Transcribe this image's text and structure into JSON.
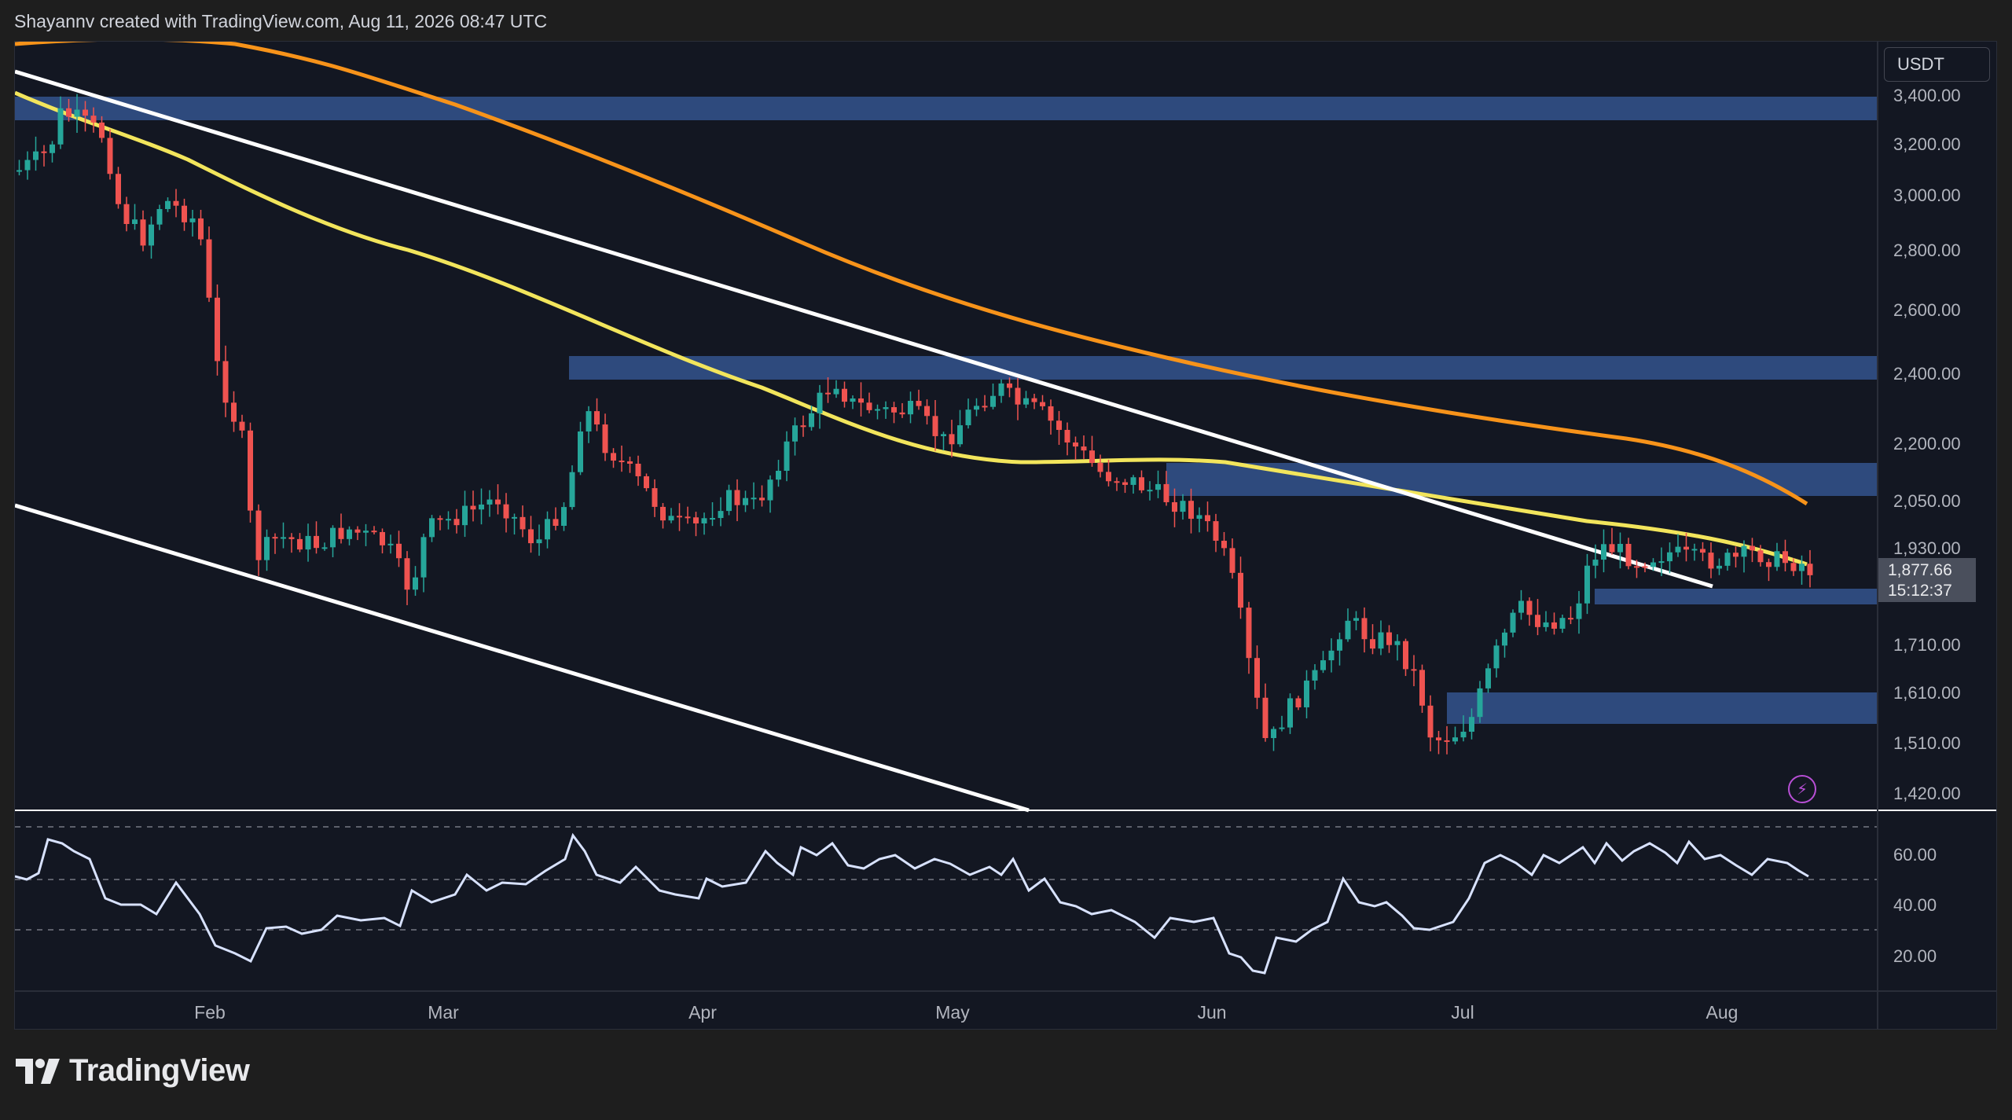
{
  "header": {
    "credit": "Shayannv created with TradingView.com, Aug 11, 2026 08:47 UTC"
  },
  "price_axis": {
    "unit": "USDT",
    "labels": [
      "3,400.00",
      "3,200.00",
      "3,000.00",
      "2,800.00",
      "2,600.00",
      "2,400.00",
      "2,200.00",
      "2,050.00",
      "1,930.00",
      "1,710.00",
      "1,610.00",
      "1,510.00",
      "1,420.00"
    ],
    "current_price": "1,877.66",
    "countdown": "15:12:37"
  },
  "rsi_axis": {
    "labels": [
      "60.00",
      "40.00",
      "20.00"
    ]
  },
  "time_axis": {
    "labels": [
      "Feb",
      "Mar",
      "Apr",
      "May",
      "Jun",
      "Jul",
      "Aug"
    ]
  },
  "colors": {
    "background": "#131722",
    "up": "#26a69a",
    "down": "#ef5350",
    "ma_yellow": "#f2e55c",
    "ma_orange": "#f7931a",
    "zone": "#2e4a7d",
    "trendline": "#ffffff",
    "rsi": "#d8e2ff"
  },
  "brand": {
    "name": "TradingView",
    "icon": "tradingview-logo-icon"
  },
  "indicator_icon": "lightning-icon"
}
